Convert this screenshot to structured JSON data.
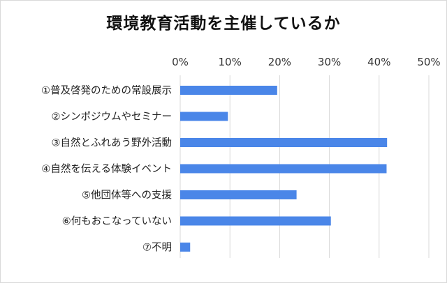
{
  "chart_data": {
    "type": "bar",
    "orientation": "horizontal",
    "title": "環境教育活動を主催しているか",
    "categories": [
      "①普及啓発のための常設展示",
      "②シンポジウムやセミナー",
      "③自然とふれあう野外活動",
      "④自然を伝える体験イベント",
      "⑤他団体等への支援",
      "⑥何もおこなっていない",
      "⑦不明"
    ],
    "values": [
      19.5,
      9.6,
      41.6,
      41.5,
      23.4,
      30.3,
      2.0
    ],
    "xlim": [
      0,
      50
    ],
    "xticks": [
      "0%",
      "10%",
      "20%",
      "30%",
      "40%",
      "50%"
    ],
    "grid": true,
    "bar_color": "#4a86e8"
  }
}
